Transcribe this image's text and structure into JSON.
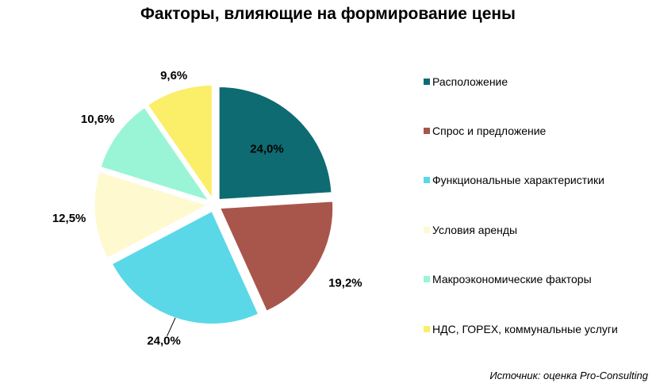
{
  "chart_data": {
    "type": "pie",
    "title": "Факторы, влияющие на формирование цены",
    "categories": [
      "Расположение",
      "Спрос и предложение",
      "Функциональные характеристики",
      "Условия аренды",
      "Макроэкономические факторы",
      "НДС, ГОРЕХ, коммунальные услуги"
    ],
    "values": [
      24.0,
      19.2,
      24.0,
      12.5,
      10.6,
      9.6
    ],
    "value_labels": [
      "24,0%",
      "19,2%",
      "24,0%",
      "12,5%",
      "10,6%",
      "9,6%"
    ],
    "colors": [
      "#0e6b72",
      "#a8564b",
      "#5ad8e8",
      "#fff9d0",
      "#99f5d5",
      "#fbee68"
    ],
    "exploded": true,
    "legend_position": "right",
    "source": "Источник: оценка Pro-Consulting"
  }
}
